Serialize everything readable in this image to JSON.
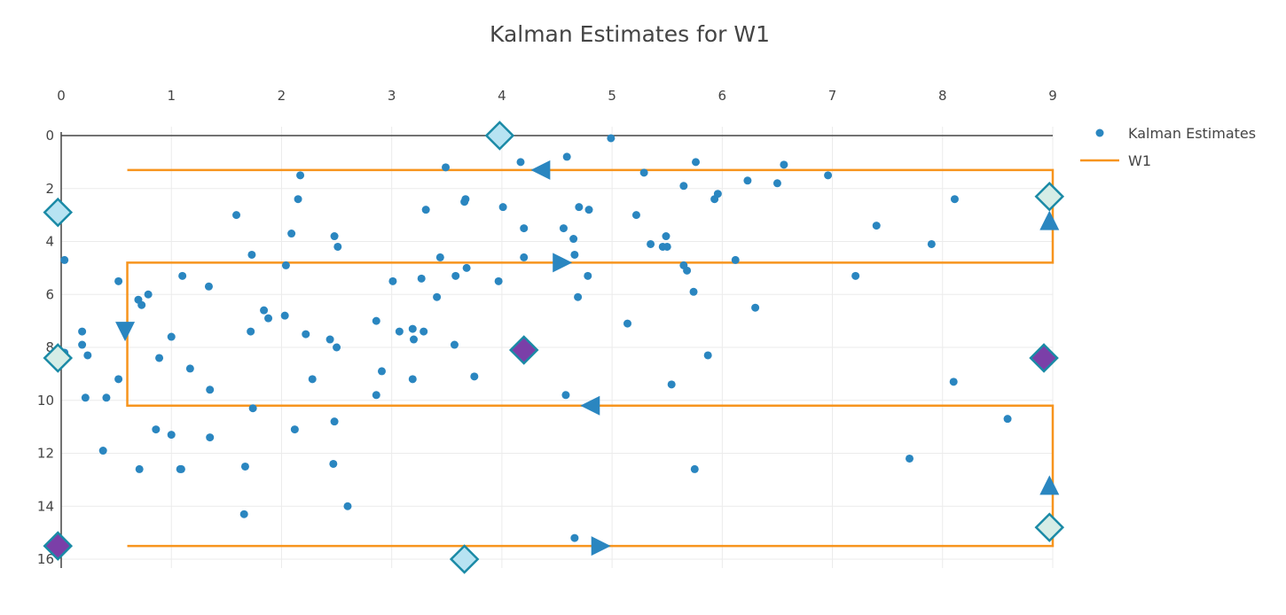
{
  "chart_data": {
    "type": "scatter",
    "title": "Kalman Estimates for W1",
    "xlabel": "",
    "ylabel": "",
    "x_axis_side": "top",
    "y_axis_reversed": true,
    "xlim": [
      0,
      9
    ],
    "ylim": [
      16,
      0
    ],
    "x_ticks": [
      "0",
      "1",
      "2",
      "3",
      "4",
      "5",
      "6",
      "7",
      "8",
      "9"
    ],
    "y_ticks": [
      "0",
      "2",
      "4",
      "6",
      "8",
      "10",
      "12",
      "14",
      "16"
    ],
    "grid": true,
    "legend_position": "top-right",
    "colors": {
      "scatter": "#2a86c0",
      "path": "#f7941d",
      "axis": "#444444",
      "grid": "#ebebeb",
      "marker_light": "#b7e3f2",
      "marker_pale": "#d5ede6",
      "marker_purple": "#7b3fa8",
      "marker_edge": "#1a8aa6"
    },
    "series": [
      {
        "name": "Kalman Estimates",
        "mode": "markers",
        "x": [
          0.03,
          0.03,
          0.19,
          0.19,
          0.24,
          0.22,
          0.41,
          0.38,
          0.52,
          0.52,
          0.7,
          0.73,
          0.79,
          0.71,
          0.86,
          0.89,
          1.0,
          1.0,
          1.09,
          1.1,
          1.08,
          1.17,
          1.34,
          1.35,
          1.35,
          1.59,
          1.67,
          1.66,
          1.73,
          1.72,
          1.74,
          1.84,
          1.88,
          2.03,
          2.04,
          2.09,
          2.12,
          2.15,
          2.17,
          2.22,
          2.28,
          2.44,
          2.47,
          2.48,
          2.48,
          2.5,
          2.51,
          2.6,
          2.86,
          2.86,
          2.91,
          3.01,
          3.07,
          3.19,
          3.2,
          3.19,
          3.27,
          3.29,
          3.31,
          3.41,
          3.44,
          3.49,
          3.58,
          3.57,
          3.66,
          3.67,
          3.68,
          3.75,
          3.97,
          4.01,
          4.17,
          4.2,
          4.2,
          4.56,
          4.58,
          4.59,
          4.65,
          4.66,
          4.66,
          4.69,
          4.7,
          4.78,
          4.79,
          4.99,
          5.14,
          5.22,
          5.29,
          5.35,
          5.46,
          5.49,
          5.5,
          5.54,
          5.65,
          5.65,
          5.68,
          5.74,
          5.75,
          5.76,
          5.87,
          5.93,
          5.96,
          6.12,
          6.23,
          6.3,
          6.5,
          6.56,
          6.96,
          7.21,
          7.4,
          7.7,
          7.9,
          8.1,
          8.11,
          8.59
        ],
        "y": [
          8.2,
          4.7,
          7.4,
          7.9,
          8.3,
          9.9,
          9.9,
          11.9,
          5.5,
          9.2,
          6.2,
          6.4,
          6.0,
          12.6,
          11.1,
          8.4,
          7.6,
          11.3,
          12.6,
          5.3,
          12.6,
          8.8,
          5.7,
          9.6,
          11.4,
          3.0,
          12.5,
          14.3,
          4.5,
          7.4,
          10.3,
          6.6,
          6.9,
          6.8,
          4.9,
          3.7,
          11.1,
          2.4,
          1.5,
          7.5,
          9.2,
          7.7,
          12.4,
          3.8,
          10.8,
          8.0,
          4.2,
          14.0,
          7.0,
          9.8,
          8.9,
          5.5,
          7.4,
          7.3,
          7.7,
          9.2,
          5.4,
          7.4,
          2.8,
          6.1,
          4.6,
          1.2,
          5.3,
          7.9,
          2.5,
          2.4,
          5.0,
          9.1,
          5.5,
          2.7,
          1.0,
          4.6,
          3.5,
          3.5,
          9.8,
          0.8,
          3.9,
          4.5,
          15.2,
          6.1,
          2.7,
          5.3,
          2.8,
          0.1,
          7.1,
          3.0,
          1.4,
          4.1,
          4.2,
          3.8,
          4.2,
          9.4,
          4.9,
          1.9,
          5.1,
          5.9,
          12.6,
          1.0,
          8.3,
          2.4,
          2.2,
          4.7,
          1.7,
          6.5,
          1.8,
          1.1,
          1.5,
          5.3,
          3.4,
          12.2,
          4.1,
          9.3,
          2.4,
          10.7
        ]
      },
      {
        "name": "W1",
        "mode": "lines",
        "x": [
          0.6,
          9.0,
          9.0,
          0.6,
          0.6,
          9.0,
          9.0,
          0.6
        ],
        "y": [
          15.5,
          15.5,
          10.2,
          10.2,
          4.8,
          4.8,
          1.3,
          1.3
        ]
      }
    ],
    "direction_markers": [
      {
        "x": 4.9,
        "y": 15.5,
        "dir": "right"
      },
      {
        "x": 4.8,
        "y": 10.2,
        "dir": "left"
      },
      {
        "x": 4.55,
        "y": 4.8,
        "dir": "right"
      },
      {
        "x": 4.35,
        "y": 1.3,
        "dir": "left"
      },
      {
        "x": 0.58,
        "y": 7.4,
        "dir": "down"
      },
      {
        "x": 8.97,
        "y": 3.2,
        "dir": "up"
      },
      {
        "x": 8.97,
        "y": 13.2,
        "dir": "up"
      }
    ],
    "diamond_markers": [
      {
        "x": 3.98,
        "y": 0.0,
        "style": "light"
      },
      {
        "x": -0.03,
        "y": 2.9,
        "style": "light"
      },
      {
        "x": 3.66,
        "y": 16.0,
        "style": "light"
      },
      {
        "x": -0.03,
        "y": 8.4,
        "style": "pale"
      },
      {
        "x": 8.97,
        "y": 2.3,
        "style": "pale"
      },
      {
        "x": 8.97,
        "y": 14.8,
        "style": "pale"
      },
      {
        "x": 4.2,
        "y": 8.1,
        "style": "purple"
      },
      {
        "x": 8.92,
        "y": 8.4,
        "style": "purple"
      },
      {
        "x": -0.03,
        "y": 15.5,
        "style": "purple"
      }
    ]
  }
}
